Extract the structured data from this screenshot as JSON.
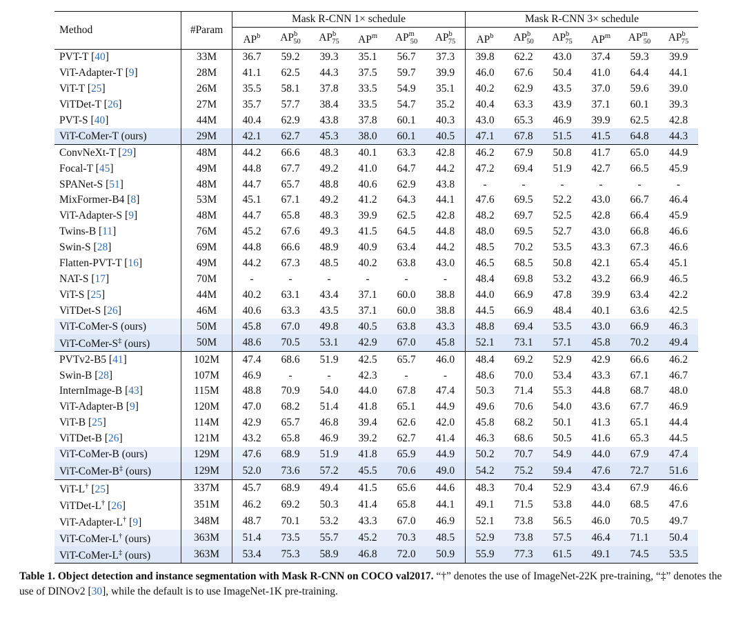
{
  "header": {
    "method": "Method",
    "param": "#Param",
    "group1": "Mask R-CNN 1× schedule",
    "group2": "Mask R-CNN 3× schedule",
    "metrics": [
      {
        "base": "AP",
        "sup": "b",
        "sub": ""
      },
      {
        "base": "AP",
        "sup": "b",
        "sub": "50"
      },
      {
        "base": "AP",
        "sup": "b",
        "sub": "75"
      },
      {
        "base": "AP",
        "sup": "m",
        "sub": ""
      },
      {
        "base": "AP",
        "sup": "m",
        "sub": "50"
      },
      {
        "base": "AP",
        "sup": "b",
        "sub": "75"
      }
    ]
  },
  "groups": [
    [
      {
        "name": "PVT-T",
        "cite": "40",
        "params": "33M",
        "v": [
          "36.7",
          "59.2",
          "39.3",
          "35.1",
          "56.7",
          "37.3",
          "39.8",
          "62.2",
          "43.0",
          "37.4",
          "59.3",
          "39.9"
        ]
      },
      {
        "name": "ViT-Adapter-T",
        "cite": "9",
        "params": "28M",
        "v": [
          "41.1",
          "62.5",
          "44.3",
          "37.5",
          "59.7",
          "39.9",
          "46.0",
          "67.6",
          "50.4",
          "41.0",
          "64.4",
          "44.1"
        ]
      },
      {
        "name": "ViT-T",
        "cite": "25",
        "params": "26M",
        "v": [
          "35.5",
          "58.1",
          "37.8",
          "33.5",
          "54.9",
          "35.1",
          "40.2",
          "62.9",
          "43.5",
          "37.0",
          "59.6",
          "39.0"
        ]
      },
      {
        "name": "ViTDet-T",
        "cite": "26",
        "params": "27M",
        "v": [
          "35.7",
          "57.7",
          "38.4",
          "33.5",
          "54.7",
          "35.2",
          "40.4",
          "63.3",
          "43.9",
          "37.1",
          "60.1",
          "39.3"
        ]
      },
      {
        "name": "PVT-S",
        "cite": "40",
        "params": "44M",
        "v": [
          "40.4",
          "62.9",
          "43.8",
          "37.8",
          "60.1",
          "40.3",
          "43.0",
          "65.3",
          "46.9",
          "39.9",
          "62.5",
          "42.8"
        ],
        "bold": [
          1,
          4
        ]
      },
      {
        "name": "ViT-CoMer-T (ours)",
        "params": "29M",
        "hl": 2,
        "v": [
          "42.1",
          "62.7",
          "45.3",
          "38.0",
          "60.1",
          "40.5",
          "47.1",
          "67.8",
          "51.5",
          "41.5",
          "64.8",
          "44.3"
        ],
        "bold": [
          0,
          2,
          3,
          4,
          5,
          6,
          7,
          8,
          9,
          10,
          11
        ]
      }
    ],
    [
      {
        "name": "ConvNeXt-T",
        "cite": "29",
        "params": "48M",
        "v": [
          "44.2",
          "66.6",
          "48.3",
          "40.1",
          "63.3",
          "42.8",
          "46.2",
          "67.9",
          "50.8",
          "41.7",
          "65.0",
          "44.9"
        ]
      },
      {
        "name": "Focal-T",
        "cite": "45",
        "params": "49M",
        "v": [
          "44.8",
          "67.7",
          "49.2",
          "41.0",
          "64.7",
          "44.2",
          "47.2",
          "69.4",
          "51.9",
          "42.7",
          "66.5",
          "45.9"
        ]
      },
      {
        "name": "SPANet-S",
        "cite": "51",
        "params": "48M",
        "v": [
          "44.7",
          "65.7",
          "48.8",
          "40.6",
          "62.9",
          "43.8",
          "-",
          "-",
          "-",
          "-",
          "-",
          "-"
        ]
      },
      {
        "name": "MixFormer-B4",
        "cite": "8",
        "params": "53M",
        "v": [
          "45.1",
          "67.1",
          "49.2",
          "41.2",
          "64.3",
          "44.1",
          "47.6",
          "69.5",
          "52.2",
          "43.0",
          "66.7",
          "46.4"
        ]
      },
      {
        "name": "ViT-Adapter-S",
        "cite": "9",
        "params": "48M",
        "v": [
          "44.7",
          "65.8",
          "48.3",
          "39.9",
          "62.5",
          "42.8",
          "48.2",
          "69.7",
          "52.5",
          "42.8",
          "66.4",
          "45.9"
        ]
      },
      {
        "name": "Twins-B",
        "cite": "11",
        "params": "76M",
        "v": [
          "45.2",
          "67.6",
          "49.3",
          "41.5",
          "64.5",
          "44.8",
          "48.0",
          "69.5",
          "52.7",
          "43.0",
          "66.8",
          "46.6"
        ]
      },
      {
        "name": "Swin-S",
        "cite": "28",
        "params": "69M",
        "v": [
          "44.8",
          "66.6",
          "48.9",
          "40.9",
          "63.4",
          "44.2",
          "48.5",
          "70.2",
          "53.5",
          "43.3",
          "67.3",
          "46.6"
        ]
      },
      {
        "name": "Flatten-PVT-T",
        "cite": "16",
        "params": "49M",
        "v": [
          "44.2",
          "67.3",
          "48.5",
          "40.2",
          "63.8",
          "43.0",
          "46.5",
          "68.5",
          "50.8",
          "42.1",
          "65.4",
          "45.1"
        ]
      },
      {
        "name": "NAT-S",
        "cite": "17",
        "params": "70M",
        "v": [
          "-",
          "-",
          "-",
          "-",
          "-",
          "-",
          "48.4",
          "69.8",
          "53.2",
          "43.2",
          "66.9",
          "46.5"
        ]
      },
      {
        "name": "ViT-S",
        "cite": "25",
        "params": "44M",
        "v": [
          "40.2",
          "63.1",
          "43.4",
          "37.1",
          "60.0",
          "38.8",
          "44.0",
          "66.9",
          "47.8",
          "39.9",
          "63.4",
          "42.2"
        ]
      },
      {
        "name": "ViTDet-S",
        "cite": "26",
        "params": "46M",
        "v": [
          "40.6",
          "63.3",
          "43.5",
          "37.1",
          "60.0",
          "38.8",
          "44.5",
          "66.9",
          "48.4",
          "40.1",
          "63.6",
          "42.5"
        ]
      },
      {
        "name": "ViT-CoMer-S (ours)",
        "params": "50M",
        "hl": 1,
        "v": [
          "45.8",
          "67.0",
          "49.8",
          "40.5",
          "63.8",
          "43.3",
          "48.8",
          "69.4",
          "53.5",
          "43.0",
          "66.9",
          "46.3"
        ]
      },
      {
        "name": "ViT-CoMer-S",
        "mark": "‡",
        "suffix": " (ours)",
        "params": "50M",
        "hl": 2,
        "v": [
          "48.6",
          "70.5",
          "53.1",
          "42.9",
          "67.0",
          "45.8",
          "52.1",
          "73.1",
          "57.1",
          "45.8",
          "70.2",
          "49.4"
        ],
        "bold": [
          0,
          1,
          2,
          3,
          4,
          5,
          6,
          7,
          8,
          9,
          10,
          11
        ]
      }
    ],
    [
      {
        "name": "PVTv2-B5",
        "cite": "41",
        "params": "102M",
        "v": [
          "47.4",
          "68.6",
          "51.9",
          "42.5",
          "65.7",
          "46.0",
          "48.4",
          "69.2",
          "52.9",
          "42.9",
          "66.6",
          "46.2"
        ]
      },
      {
        "name": "Swin-B",
        "cite": "28",
        "params": "107M",
        "v": [
          "46.9",
          "-",
          "-",
          "42.3",
          "-",
          "-",
          "48.6",
          "70.0",
          "53.4",
          "43.3",
          "67.1",
          "46.7"
        ]
      },
      {
        "name": "InternImage-B",
        "cite": "43",
        "params": "115M",
        "v": [
          "48.8",
          "70.9",
          "54.0",
          "44.0",
          "67.8",
          "47.4",
          "50.3",
          "71.4",
          "55.3",
          "44.8",
          "68.7",
          "48.0"
        ]
      },
      {
        "name": "ViT-Adapter-B",
        "cite": "9",
        "params": "120M",
        "v": [
          "47.0",
          "68.2",
          "51.4",
          "41.8",
          "65.1",
          "44.9",
          "49.6",
          "70.6",
          "54.0",
          "43.6",
          "67.7",
          "46.9"
        ]
      },
      {
        "name": "ViT-B",
        "cite": "25",
        "params": "114M",
        "v": [
          "42.9",
          "65.7",
          "46.8",
          "39.4",
          "62.6",
          "42.0",
          "45.8",
          "68.2",
          "50.1",
          "41.3",
          "65.1",
          "44.4"
        ]
      },
      {
        "name": "ViTDet-B",
        "cite": "26",
        "params": "121M",
        "v": [
          "43.2",
          "65.8",
          "46.9",
          "39.2",
          "62.7",
          "41.4",
          "46.3",
          "68.6",
          "50.5",
          "41.6",
          "65.3",
          "44.5"
        ]
      },
      {
        "name": "ViT-CoMer-B (ours)",
        "params": "129M",
        "hl": 1,
        "v": [
          "47.6",
          "68.9",
          "51.9",
          "41.8",
          "65.9",
          "44.9",
          "50.2",
          "70.7",
          "54.9",
          "44.0",
          "67.9",
          "47.4"
        ]
      },
      {
        "name": "ViT-CoMer-B",
        "mark": "‡",
        "suffix": " (ours)",
        "params": "129M",
        "hl": 2,
        "v": [
          "52.0",
          "73.6",
          "57.2",
          "45.5",
          "70.6",
          "49.0",
          "54.2",
          "75.2",
          "59.4",
          "47.6",
          "72.7",
          "51.6"
        ],
        "bold": [
          0,
          1,
          2,
          3,
          4,
          5,
          6,
          7,
          8,
          9,
          10,
          11
        ]
      }
    ],
    [
      {
        "name": "ViT-L",
        "mark": "†",
        "cite": "25",
        "params": "337M",
        "v": [
          "45.7",
          "68.9",
          "49.4",
          "41.5",
          "65.6",
          "44.6",
          "48.3",
          "70.4",
          "52.9",
          "43.4",
          "67.9",
          "46.6"
        ]
      },
      {
        "name": "ViTDet-L",
        "mark": "†",
        "cite": "26",
        "params": "351M",
        "v": [
          "46.2",
          "69.2",
          "50.3",
          "41.4",
          "65.8",
          "44.1",
          "49.1",
          "71.5",
          "53.8",
          "44.0",
          "68.5",
          "47.6"
        ]
      },
      {
        "name": "ViT-Adapter-L",
        "mark": "†",
        "cite": "9",
        "params": "348M",
        "v": [
          "48.7",
          "70.1",
          "53.2",
          "43.3",
          "67.0",
          "46.9",
          "52.1",
          "73.8",
          "56.5",
          "46.0",
          "70.5",
          "49.7"
        ]
      },
      {
        "name": "ViT-CoMer-L",
        "mark": "†",
        "suffix": " (ours)",
        "params": "363M",
        "hl": 1,
        "v": [
          "51.4",
          "73.5",
          "55.7",
          "45.2",
          "70.3",
          "48.5",
          "52.9",
          "73.8",
          "57.5",
          "46.4",
          "71.1",
          "50.4"
        ]
      },
      {
        "name": "ViT-CoMer-L",
        "mark": "‡",
        "suffix": " (ours)",
        "params": "363M",
        "hl": 2,
        "v": [
          "53.4",
          "75.3",
          "58.9",
          "46.8",
          "72.0",
          "50.9",
          "55.9",
          "77.3",
          "61.5",
          "49.1",
          "74.5",
          "53.5"
        ],
        "bold": [
          0,
          1,
          2,
          3,
          4,
          5,
          6,
          7,
          8,
          9,
          10,
          11
        ]
      }
    ]
  ],
  "caption": {
    "label": "Table 1.",
    "title": "Object detection and instance segmentation with Mask R-CNN on COCO val2017.",
    "text1": "“†” denotes the use of ImageNet-22K pre-training, “‡” denotes the use of DINOv2 [",
    "cite": "30",
    "text2": "], while the default is to use ImageNet-1K pre-training."
  }
}
